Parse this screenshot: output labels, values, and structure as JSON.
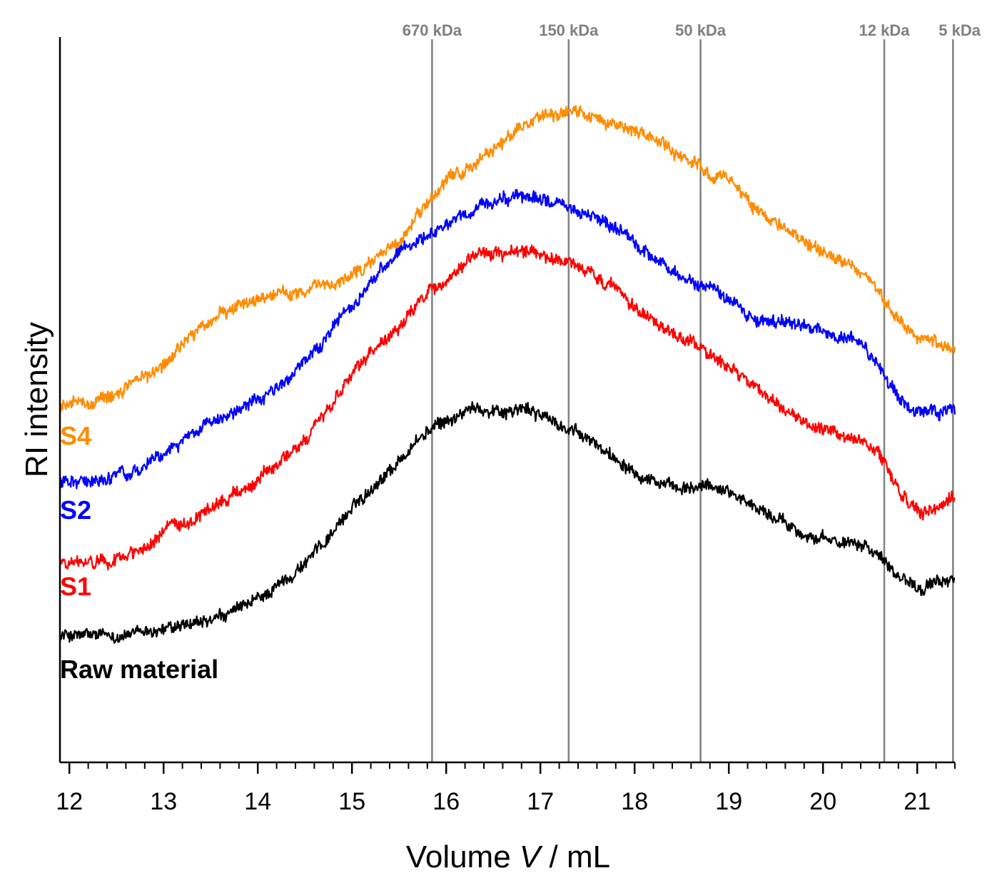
{
  "chart_data": {
    "type": "line",
    "title": "",
    "xlabel_prefix": "Volume ",
    "xlabel_var": "V",
    "xlabel_suffix": " / mL",
    "ylabel": "RI intensity",
    "xlim": [
      11.9,
      21.4
    ],
    "ylim": [
      0,
      100
    ],
    "x_ticks": [
      12,
      13,
      14,
      15,
      16,
      17,
      18,
      19,
      20,
      21
    ],
    "x_tick_labels": [
      "12",
      "13",
      "14",
      "15",
      "16",
      "17",
      "18",
      "19",
      "20",
      "21"
    ],
    "y_ticks_shown": false,
    "reference_lines": [
      {
        "x": 15.85,
        "label": "670 kDa"
      },
      {
        "x": 17.3,
        "label": "150 kDa"
      },
      {
        "x": 18.7,
        "label": "50 kDa"
      },
      {
        "x": 20.65,
        "label": "12 kDa"
      },
      {
        "x": 21.38,
        "label": "5 kDa"
      }
    ],
    "reference_color": "#808080",
    "series": [
      {
        "name": "Raw material",
        "color": "#000000",
        "x": [
          11.9,
          12.5,
          13.0,
          13.5,
          14.0,
          14.5,
          15.0,
          15.5,
          15.8,
          16.0,
          16.3,
          16.6,
          16.9,
          17.2,
          17.5,
          17.8,
          18.2,
          18.5,
          18.7,
          19.0,
          19.3,
          19.6,
          20.0,
          20.4,
          20.6,
          20.8,
          21.0,
          21.2,
          21.4
        ],
        "y": [
          17.5,
          17.5,
          18.3,
          19.5,
          22.5,
          27.5,
          35.0,
          41.5,
          45.5,
          47.0,
          48.7,
          48.5,
          48.5,
          46.5,
          44.5,
          42.0,
          39.0,
          37.5,
          38.0,
          37.5,
          35.0,
          33.0,
          30.5,
          30.5,
          28.5,
          26.0,
          24.5,
          24.5,
          25.5
        ]
      },
      {
        "name": "S1",
        "color": "#ff0000",
        "x": [
          11.9,
          12.5,
          13.0,
          13.5,
          14.0,
          14.5,
          15.0,
          15.5,
          15.8,
          16.0,
          16.3,
          16.6,
          16.9,
          17.2,
          17.5,
          17.8,
          18.2,
          18.5,
          18.7,
          19.0,
          19.3,
          19.6,
          20.0,
          20.4,
          20.6,
          20.8,
          21.0,
          21.2,
          21.4
        ],
        "y": [
          27.5,
          28.0,
          31.5,
          35.0,
          39.0,
          44.5,
          53.5,
          59.5,
          64.5,
          66.5,
          69.5,
          70.5,
          70.5,
          69.0,
          67.5,
          65.0,
          61.0,
          58.5,
          57.0,
          54.5,
          51.5,
          48.5,
          45.5,
          44.5,
          42.5,
          37.5,
          35.0,
          35.0,
          36.5
        ]
      },
      {
        "name": "S2",
        "color": "#0000ff",
        "x": [
          11.9,
          12.5,
          13.0,
          13.5,
          14.0,
          14.5,
          15.0,
          15.5,
          15.8,
          16.0,
          16.3,
          16.6,
          16.9,
          17.2,
          17.5,
          17.8,
          18.2,
          18.5,
          18.7,
          19.0,
          19.3,
          19.6,
          20.0,
          20.4,
          20.6,
          20.8,
          21.0,
          21.2,
          21.4
        ],
        "y": [
          38.5,
          39.5,
          42.5,
          47.0,
          50.0,
          55.0,
          63.0,
          70.0,
          72.5,
          74.0,
          76.0,
          77.5,
          78.0,
          77.0,
          75.5,
          73.5,
          69.5,
          67.0,
          66.0,
          63.5,
          61.0,
          61.0,
          59.5,
          58.0,
          54.5,
          50.5,
          48.5,
          48.0,
          48.5
        ]
      },
      {
        "name": "S4",
        "color": "#ff8c00",
        "x": [
          11.9,
          12.5,
          13.0,
          13.5,
          14.0,
          14.5,
          15.0,
          15.5,
          15.8,
          16.0,
          16.3,
          16.6,
          16.9,
          17.2,
          17.5,
          17.8,
          18.2,
          18.5,
          18.7,
          19.0,
          19.3,
          19.6,
          20.0,
          20.4,
          20.6,
          20.8,
          21.0,
          21.2,
          21.4
        ],
        "y": [
          49.0,
          51.0,
          55.0,
          61.0,
          64.0,
          65.0,
          67.0,
          72.0,
          77.0,
          80.0,
          82.5,
          85.5,
          88.5,
          89.5,
          89.5,
          88.0,
          86.0,
          83.5,
          82.0,
          80.0,
          76.5,
          73.5,
          70.5,
          67.5,
          65.0,
          61.0,
          58.5,
          57.5,
          57.5
        ]
      }
    ],
    "series_labels": [
      {
        "text": "Raw material",
        "color": "#000000"
      },
      {
        "text": "S1",
        "color": "#ff0000"
      },
      {
        "text": "S2",
        "color": "#0000ff"
      },
      {
        "text": "S4",
        "color": "#ff8c00"
      }
    ]
  }
}
